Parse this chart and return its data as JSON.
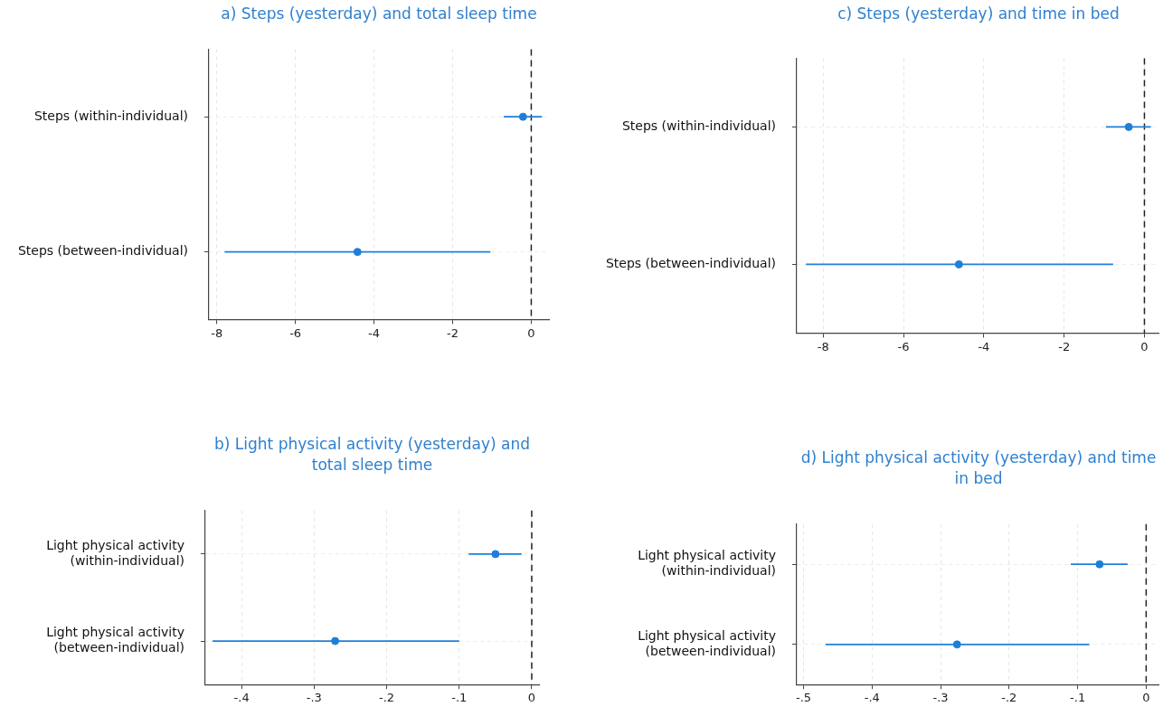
{
  "chart_data": [
    {
      "type": "scatter",
      "orientation": "horizontal",
      "title": "a) Steps (yesterday) and total sleep time",
      "categories": [
        "Steps (within-individual)",
        "Steps (between-individual)"
      ],
      "values": [
        -0.21,
        -4.42
      ],
      "errors": [
        [
          -0.7,
          0.27
        ],
        [
          -7.8,
          -1.04
        ]
      ],
      "color": "#1f7fd8",
      "marker": "circle",
      "xlim": [
        -8.2,
        0.45
      ],
      "xticks": [
        -8,
        -6,
        -4,
        -2,
        0
      ],
      "grid": true,
      "ref_lines": [
        {
          "axis": "x",
          "value": 0,
          "color": "#222222",
          "line_style": "dashed"
        }
      ]
    },
    {
      "type": "scatter",
      "orientation": "horizontal",
      "title": "c) Steps (yesterday) and time in bed",
      "categories": [
        "Steps (within-individual)",
        "Steps (between-individual)"
      ],
      "values": [
        -0.39,
        -4.62
      ],
      "errors": [
        [
          -0.96,
          0.16
        ],
        [
          -8.43,
          -0.78
        ]
      ],
      "color": "#1f7fd8",
      "marker": "circle",
      "xlim": [
        -8.66,
        0.35
      ],
      "xticks": [
        -8,
        -6,
        -4,
        -2,
        0
      ],
      "grid": true,
      "ref_lines": [
        {
          "axis": "x",
          "value": 0,
          "color": "#222222",
          "line_style": "dashed"
        }
      ]
    },
    {
      "type": "scatter",
      "orientation": "horizontal",
      "title": "b) Light physical activity (yesterday) and total sleep time",
      "categories": [
        "Light physical activity (within-individual)",
        "Light physical activity (between-individual)"
      ],
      "values": [
        -0.05,
        -0.271
      ],
      "errors": [
        [
          -0.087,
          -0.014
        ],
        [
          -0.44,
          -0.1
        ]
      ],
      "color": "#1f7fd8",
      "marker": "circle",
      "xlim": [
        -0.45,
        0.01
      ],
      "xticks": [
        {
          "value": -0.4,
          "label": "-.4"
        },
        {
          "value": -0.3,
          "label": "-.3"
        },
        {
          "value": -0.2,
          "label": "-.2"
        },
        {
          "value": -0.1,
          "label": "-.1"
        },
        0
      ],
      "grid": true,
      "ref_lines": [
        {
          "axis": "x",
          "value": 0,
          "color": "#222222",
          "line_style": "dashed"
        }
      ]
    },
    {
      "type": "scatter",
      "orientation": "horizontal",
      "title": "d) Light physical activity (yesterday) and time in bed",
      "categories": [
        "Light physical activity (within-individual)",
        "Light physical activity (between-individual)"
      ],
      "values": [
        -0.068,
        -0.276
      ],
      "errors": [
        [
          -0.11,
          -0.027
        ],
        [
          -0.468,
          -0.083
        ]
      ],
      "color": "#1f7fd8",
      "marker": "circle",
      "xlim": [
        -0.51,
        0.018
      ],
      "xticks": [
        {
          "value": -0.5,
          "label": "-.5"
        },
        {
          "value": -0.4,
          "label": "-.4"
        },
        {
          "value": -0.3,
          "label": "-.3"
        },
        {
          "value": -0.2,
          "label": "-.2"
        },
        {
          "value": -0.1,
          "label": "-.1"
        },
        0
      ],
      "grid": true,
      "ref_lines": [
        {
          "axis": "x",
          "value": 0,
          "color": "#222222",
          "line_style": "dashed"
        }
      ]
    }
  ]
}
